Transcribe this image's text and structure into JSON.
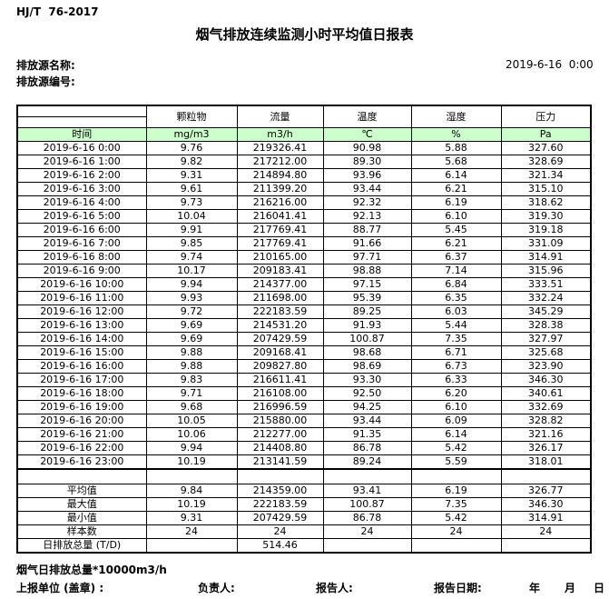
{
  "page": {
    "standard": "HJ/T  76-2017",
    "title": "烟气排放连续监测小时平均值日报表",
    "source_name_label": "排放源名称:",
    "source_code_label": "排放源编号:",
    "report_datetime": "2019-6-16  0:00"
  },
  "table": {
    "time_header": "时间",
    "header_fill_color": "#ccffcc",
    "columns": [
      {
        "label": "颗粒物",
        "unit": "mg/m3"
      },
      {
        "label": "流量",
        "unit": "m3/h"
      },
      {
        "label": "温度",
        "unit": "℃"
      },
      {
        "label": "湿度",
        "unit": "%"
      },
      {
        "label": "压力",
        "unit": "Pa"
      }
    ],
    "rows": [
      {
        "time": "2019-6-16 0:00",
        "values": [
          "9.76",
          "219326.41",
          "90.98",
          "5.88",
          "327.60"
        ]
      },
      {
        "time": "2019-6-16 1:00",
        "values": [
          "9.82",
          "217212.00",
          "89.30",
          "5.68",
          "328.69"
        ]
      },
      {
        "time": "2019-6-16 2:00",
        "values": [
          "9.31",
          "214894.80",
          "93.96",
          "6.14",
          "321.34"
        ]
      },
      {
        "time": "2019-6-16 3:00",
        "values": [
          "9.61",
          "211399.20",
          "93.44",
          "6.21",
          "315.10"
        ]
      },
      {
        "time": "2019-6-16 4:00",
        "values": [
          "9.73",
          "216216.00",
          "92.32",
          "6.19",
          "318.62"
        ]
      },
      {
        "time": "2019-6-16 5:00",
        "values": [
          "10.04",
          "216041.41",
          "92.13",
          "6.10",
          "319.30"
        ]
      },
      {
        "time": "2019-6-16 6:00",
        "values": [
          "9.91",
          "217769.41",
          "88.77",
          "5.45",
          "319.18"
        ]
      },
      {
        "time": "2019-6-16 7:00",
        "values": [
          "9.85",
          "217769.41",
          "91.66",
          "6.21",
          "331.09"
        ]
      },
      {
        "time": "2019-6-16 8:00",
        "values": [
          "9.74",
          "210165.00",
          "97.71",
          "6.37",
          "314.91"
        ]
      },
      {
        "time": "2019-6-16 9:00",
        "values": [
          "10.17",
          "209183.41",
          "98.88",
          "7.14",
          "315.96"
        ]
      },
      {
        "time": "2019-6-16 10:00",
        "values": [
          "9.94",
          "214377.00",
          "97.15",
          "6.84",
          "333.51"
        ]
      },
      {
        "time": "2019-6-16 11:00",
        "values": [
          "9.93",
          "211698.00",
          "95.39",
          "6.35",
          "332.24"
        ]
      },
      {
        "time": "2019-6-16 12:00",
        "values": [
          "9.72",
          "222183.59",
          "89.25",
          "6.03",
          "345.29"
        ]
      },
      {
        "time": "2019-6-16 13:00",
        "values": [
          "9.69",
          "214531.20",
          "91.93",
          "5.44",
          "328.38"
        ]
      },
      {
        "time": "2019-6-16 14:00",
        "values": [
          "9.69",
          "207429.59",
          "100.87",
          "7.35",
          "327.97"
        ]
      },
      {
        "time": "2019-6-16 15:00",
        "values": [
          "9.88",
          "209168.41",
          "98.68",
          "6.71",
          "325.68"
        ]
      },
      {
        "time": "2019-6-16 16:00",
        "values": [
          "9.88",
          "209827.80",
          "98.69",
          "6.73",
          "323.90"
        ]
      },
      {
        "time": "2019-6-16 17:00",
        "values": [
          "9.83",
          "216611.41",
          "93.30",
          "6.33",
          "346.30"
        ]
      },
      {
        "time": "2019-6-16 18:00",
        "values": [
          "9.71",
          "216108.00",
          "92.50",
          "6.20",
          "340.61"
        ]
      },
      {
        "time": "2019-6-16 19:00",
        "values": [
          "9.68",
          "216996.59",
          "94.25",
          "6.10",
          "332.69"
        ]
      },
      {
        "time": "2019-6-16 20:00",
        "values": [
          "10.05",
          "215880.00",
          "93.44",
          "6.09",
          "328.82"
        ]
      },
      {
        "time": "2019-6-16 21:00",
        "values": [
          "10.06",
          "212277.00",
          "91.35",
          "6.14",
          "321.16"
        ]
      },
      {
        "time": "2019-6-16 22:00",
        "values": [
          "9.94",
          "214408.80",
          "86.78",
          "5.42",
          "326.17"
        ]
      },
      {
        "time": "2019-6-16 23:00",
        "values": [
          "10.19",
          "213141.59",
          "89.24",
          "5.59",
          "318.01"
        ]
      }
    ],
    "summary_rows": [
      {
        "label": "平均值",
        "values": [
          "9.84",
          "214359.00",
          "93.41",
          "6.19",
          "326.77"
        ]
      },
      {
        "label": "最大值",
        "values": [
          "10.19",
          "222183.59",
          "100.87",
          "7.35",
          "346.30"
        ]
      },
      {
        "label": "最小值",
        "values": [
          "9.31",
          "207429.59",
          "86.78",
          "5.42",
          "314.91"
        ]
      },
      {
        "label": "样本数",
        "values": [
          "24",
          "24",
          "24",
          "24",
          "24"
        ]
      },
      {
        "label": "日排放总量 (T/D)",
        "values": [
          "",
          "514.46",
          "",
          "",
          ""
        ]
      }
    ]
  },
  "footer": {
    "note": "烟气日排放总量*10000m3/h",
    "report_unit_label": "上报单位 (盖章) :",
    "manager_label": "负责人:",
    "reporter_label": "报告人:",
    "report_date_label": "报告日期:",
    "year_label": "年",
    "month_label": "月",
    "day_label": "日"
  }
}
